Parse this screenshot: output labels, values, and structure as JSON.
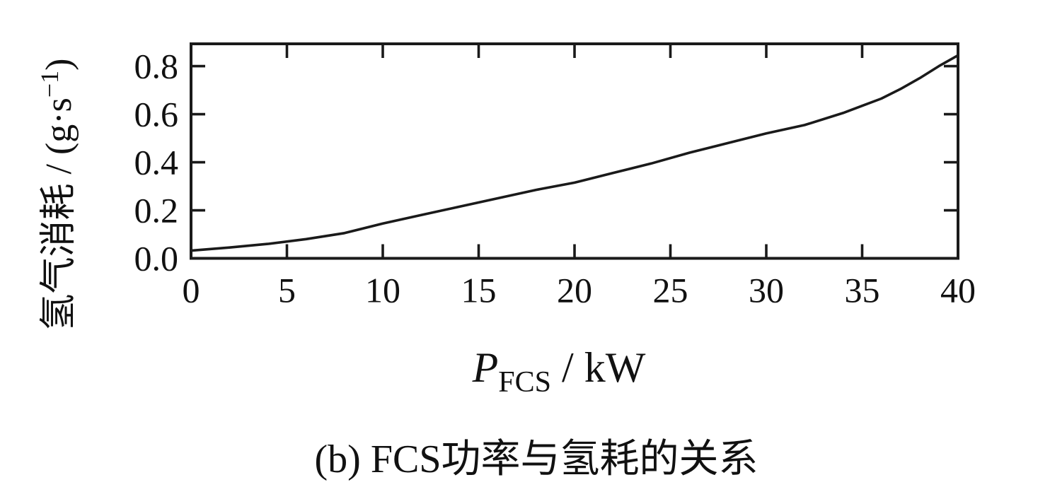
{
  "chart_data": {
    "type": "line",
    "title": "",
    "caption": "(b) FCS功率与氢耗的关系",
    "xlabel": {
      "symbol": "P",
      "subscript": "FCS",
      "unit": " / kW"
    },
    "ylabel": {
      "text": "氢气消耗 / (g·s",
      "sup": "−1",
      "close": ")"
    },
    "xlim": [
      0,
      40
    ],
    "ylim": [
      0,
      0.893
    ],
    "grid": false,
    "legend": "none",
    "line_color": "#1a1a1a",
    "x_ticks": [
      {
        "label": "0",
        "value": 0
      },
      {
        "label": "5",
        "value": 5
      },
      {
        "label": "10",
        "value": 10
      },
      {
        "label": "15",
        "value": 15
      },
      {
        "label": "20",
        "value": 20
      },
      {
        "label": "25",
        "value": 25
      },
      {
        "label": "30",
        "value": 30
      },
      {
        "label": "35",
        "value": 35
      },
      {
        "label": "40",
        "value": 40
      }
    ],
    "y_ticks": [
      {
        "label": "0.0",
        "value": 0.0
      },
      {
        "label": "0.2",
        "value": 0.2
      },
      {
        "label": "0.4",
        "value": 0.4
      },
      {
        "label": "0.6",
        "value": 0.6
      },
      {
        "label": "0.8",
        "value": 0.8
      }
    ],
    "series": [
      {
        "name": "hydrogen-consumption-vs-fcs-power",
        "x": [
          0,
          2,
          4,
          6,
          8,
          10,
          12,
          14,
          16,
          18,
          20,
          22,
          24,
          26,
          28,
          30,
          32,
          34,
          35,
          36,
          37,
          38,
          39,
          40
        ],
        "y": [
          0.032,
          0.045,
          0.06,
          0.08,
          0.105,
          0.145,
          0.18,
          0.215,
          0.25,
          0.285,
          0.315,
          0.355,
          0.395,
          0.44,
          0.48,
          0.52,
          0.555,
          0.605,
          0.635,
          0.665,
          0.705,
          0.75,
          0.8,
          0.845
        ]
      }
    ]
  }
}
